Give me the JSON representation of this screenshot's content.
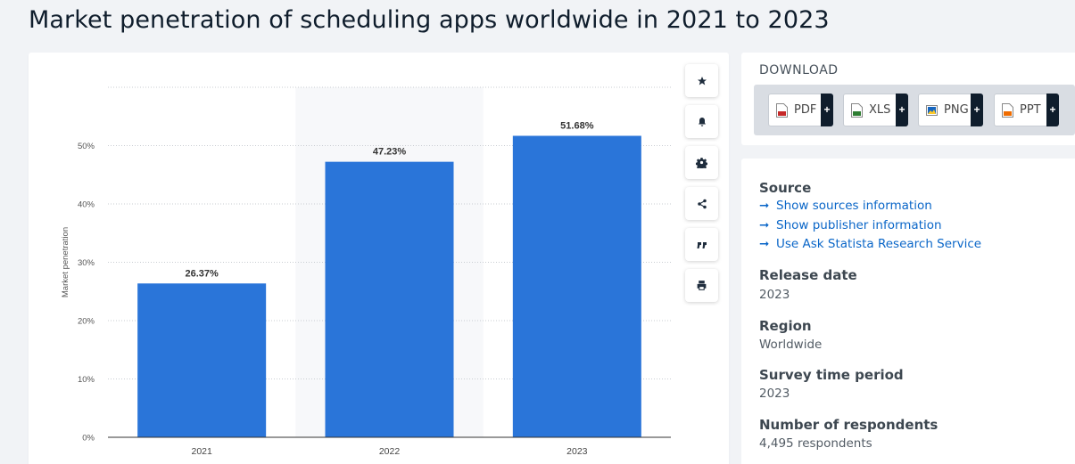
{
  "page": {
    "title": "Market penetration of scheduling apps worldwide in 2021 to 2023"
  },
  "chart_data": {
    "type": "bar",
    "categories": [
      "2021",
      "2022",
      "2023"
    ],
    "values": [
      26.37,
      47.23,
      51.68
    ],
    "value_labels": [
      "26.37%",
      "47.23%",
      "51.68%"
    ],
    "ylabel": "Market penetration",
    "ylim": [
      0,
      60
    ],
    "yticks": [
      0,
      10,
      20,
      30,
      40,
      50
    ],
    "ytick_labels": [
      "0%",
      "10%",
      "20%",
      "30%",
      "40%",
      "50%"
    ],
    "highlighted_category": "2022",
    "bar_color": "#2a75d9",
    "grid": true
  },
  "toolbar": {
    "icons": [
      "star-icon",
      "bell-icon",
      "gear-icon",
      "share-icon",
      "quote-icon",
      "print-icon"
    ]
  },
  "download": {
    "title": "DOWNLOAD",
    "formats": [
      {
        "label": "PDF",
        "color": "#c62828"
      },
      {
        "label": "XLS",
        "color": "#2e7d32"
      },
      {
        "label": "PNG",
        "color": "#1565c0"
      },
      {
        "label": "PPT",
        "color": "#ef6c00"
      }
    ],
    "plus": "+"
  },
  "info": {
    "source_heading": "Source",
    "links": [
      "Show sources information",
      "Show publisher information",
      "Use Ask Statista Research Service"
    ],
    "link_arrow": "➞",
    "release_heading": "Release date",
    "release_value": "2023",
    "region_heading": "Region",
    "region_value": "Worldwide",
    "survey_heading": "Survey time period",
    "survey_value": "2023",
    "respondents_heading": "Number of respondents",
    "respondents_value": "4,495 respondents"
  }
}
